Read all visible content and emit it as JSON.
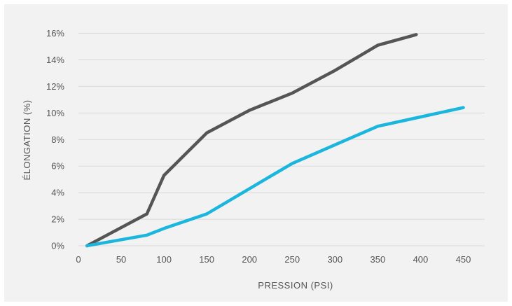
{
  "chart_data": {
    "type": "line",
    "title": "",
    "xlabel": "PRESSION (PSI)",
    "ylabel": "ÉLONGATION (%)",
    "xlim": [
      0,
      475
    ],
    "ylim": [
      0,
      16
    ],
    "x_ticks": [
      0,
      50,
      100,
      150,
      200,
      250,
      300,
      350,
      400,
      450
    ],
    "y_ticks": [
      0,
      2,
      4,
      6,
      8,
      10,
      12,
      14,
      16
    ],
    "y_tick_suffix": "%",
    "grid": true,
    "legend": "none",
    "series": [
      {
        "color": "#555555",
        "points": [
          [
            10,
            0
          ],
          [
            80,
            2.4
          ],
          [
            100,
            5.3
          ],
          [
            150,
            8.5
          ],
          [
            200,
            10.2
          ],
          [
            250,
            11.5
          ],
          [
            300,
            13.2
          ],
          [
            350,
            15.1
          ],
          [
            395,
            15.9
          ]
        ]
      },
      {
        "color": "#1ab6dd",
        "points": [
          [
            10,
            0
          ],
          [
            80,
            0.8
          ],
          [
            100,
            1.3
          ],
          [
            150,
            2.4
          ],
          [
            200,
            4.3
          ],
          [
            250,
            6.2
          ],
          [
            300,
            7.6
          ],
          [
            350,
            9.0
          ],
          [
            400,
            9.7
          ],
          [
            450,
            10.4
          ]
        ]
      }
    ]
  }
}
